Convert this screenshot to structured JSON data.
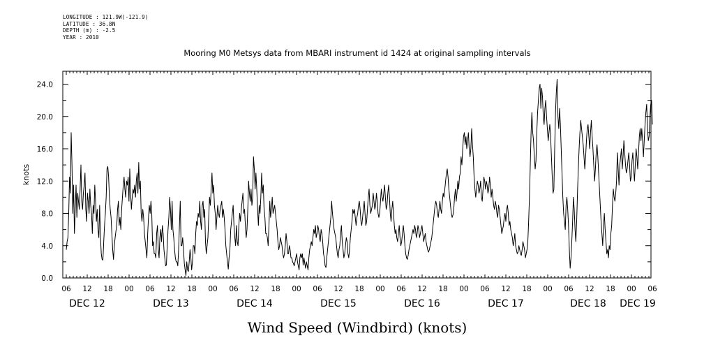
{
  "meta": {
    "longitude": "LONGITUDE : 121.9W(-121.9)",
    "latitude": "LATITUDE : 36.8N",
    "depth": "DEPTH (m) : -2.5",
    "year": "YEAR : 2010"
  },
  "chart_data": {
    "type": "line",
    "title": "Mooring M0 Metsys data from MBARI instrument id 1424 at original sampling intervals",
    "ylabel": "knots",
    "xlabel": "Wind Speed (Windbird) (knots)",
    "ylim": [
      0,
      25.6
    ],
    "xlim_hours": [
      0,
      168
    ],
    "grid": false,
    "y_ticks": [
      "0.0",
      "4.0",
      "8.0",
      "12.0",
      "16.0",
      "20.0",
      "24.0"
    ],
    "x_hour_labels": [
      "06",
      "12",
      "18",
      "00",
      "06",
      "12",
      "18",
      "00",
      "06",
      "12",
      "18",
      "00",
      "06",
      "12",
      "18",
      "00",
      "06",
      "12",
      "18",
      "00",
      "06",
      "12",
      "18",
      "00",
      "06",
      "12",
      "18",
      "00",
      "06"
    ],
    "day_labels": [
      "DEC 12",
      "DEC 13",
      "DEC 14",
      "DEC 15",
      "DEC 16",
      "DEC 17",
      "DEC 18",
      "DEC 19"
    ],
    "series": [
      {
        "values": [
          3.5,
          4.5,
          5.0,
          8.0,
          12.5,
          10.5,
          18.0,
          14.0,
          8.0,
          11.5,
          5.5,
          8.5,
          11.5,
          7.5,
          10.5,
          9.5,
          8.5,
          11.0,
          14.0,
          9.5,
          8.5,
          10.5,
          11.5,
          13.0,
          8.5,
          7.0,
          10.5,
          9.5,
          8.0,
          11.0,
          9.0,
          8.0,
          5.5,
          9.0,
          8.0,
          11.5,
          9.5,
          7.0,
          8.5,
          6.0,
          5.0,
          9.0,
          5.0,
          3.0,
          2.3,
          2.2,
          4.5,
          6.5,
          8.0,
          10.0,
          13.5,
          13.8,
          12.5,
          10.0,
          8.5,
          7.5,
          5.5,
          3.5,
          2.3,
          4.0,
          5.0,
          5.8,
          6.5,
          8.5,
          9.5,
          6.5,
          7.5,
          6.0,
          8.5,
          10.0,
          11.5,
          12.5,
          11.0,
          10.0,
          12.0,
          11.5,
          12.5,
          9.5,
          13.5,
          10.5,
          8.5,
          10.0,
          11.0,
          10.5,
          11.5,
          10.0,
          12.0,
          13.0,
          10.5,
          14.3,
          11.0,
          12.0,
          8.0,
          7.0,
          8.5,
          7.5,
          5.5,
          4.5,
          3.5,
          2.5,
          5.5,
          7.5,
          9.0,
          8.0,
          9.5,
          8.0,
          4.0,
          4.5,
          3.0,
          3.0,
          2.5,
          5.5,
          6.5,
          3.5,
          2.5,
          5.0,
          6.0,
          4.5,
          6.5,
          5.5,
          3.5,
          2.5,
          1.5,
          1.6,
          4.0,
          6.0,
          7.5,
          10.0,
          8.5,
          6.0,
          9.5,
          6.0,
          5.0,
          3.5,
          2.5,
          2.0,
          2.0,
          1.5,
          3.5,
          6.5,
          9.5,
          4.0,
          4.0,
          5.0,
          3.5,
          1.8,
          1.0,
          0.3,
          2.0,
          1.0,
          0.8,
          2.0,
          3.5,
          2.5,
          1.0,
          2.0,
          4.0,
          4.0,
          3.0,
          5.5,
          7.0,
          6.5,
          8.0,
          7.5,
          9.5,
          7.0,
          6.0,
          9.0,
          9.5,
          7.5,
          8.5,
          4.5,
          3.0,
          4.0,
          5.0,
          7.5,
          10.0,
          9.0,
          11.0,
          13.0,
          10.5,
          11.5,
          9.0,
          8.0,
          6.0,
          7.5,
          9.0,
          8.0,
          7.5,
          8.5,
          9.0,
          9.5,
          7.5,
          8.5,
          7.5,
          6.0,
          4.0,
          3.0,
          2.0,
          1.1,
          2.5,
          3.5,
          6.0,
          7.0,
          8.0,
          9.0,
          6.5,
          5.0,
          4.0,
          6.5,
          4.5,
          4.0,
          6.5,
          8.0,
          7.0,
          8.5,
          9.5,
          10.5,
          8.0,
          8.5,
          6.5,
          5.0,
          6.0,
          8.5,
          12.0,
          10.5,
          9.5,
          11.0,
          9.0,
          10.0,
          15.0,
          13.5,
          11.0,
          13.0,
          11.0,
          8.5,
          6.5,
          9.0,
          8.0,
          10.0,
          13.0,
          10.5,
          11.5,
          8.5,
          7.5,
          5.5,
          5.5,
          5.0,
          4.0,
          6.5,
          9.5,
          7.5,
          8.5,
          10.0,
          8.0,
          8.5,
          9.0,
          8.0,
          7.0,
          6.0,
          4.5,
          3.5,
          4.0,
          5.0,
          4.5,
          4.0,
          3.0,
          2.5,
          3.0,
          4.0,
          5.5,
          4.5,
          3.0,
          3.0,
          4.0,
          3.5,
          2.5,
          2.5,
          2.0,
          1.8,
          1.5,
          2.0,
          2.5,
          3.0,
          2.0,
          1.5,
          1.0,
          2.5,
          3.0,
          2.5,
          3.0,
          1.6,
          2.5,
          1.8,
          1.2,
          2.0,
          1.5,
          1.0,
          2.5,
          3.5,
          4.0,
          4.5,
          4.0,
          5.0,
          6.0,
          5.5,
          6.5,
          5.0,
          5.5,
          6.5,
          6.0,
          5.0,
          4.5,
          6.0,
          5.5,
          4.5,
          3.0,
          2.5,
          1.5,
          1.3,
          2.5,
          3.5,
          4.5,
          5.5,
          6.5,
          7.5,
          9.5,
          8.0,
          7.0,
          6.0,
          5.5,
          5.0,
          4.0,
          3.0,
          2.5,
          3.5,
          4.0,
          5.5,
          6.5,
          4.5,
          3.5,
          2.5,
          3.0,
          4.0,
          5.0,
          4.5,
          3.0,
          2.5,
          3.5,
          5.0,
          6.0,
          7.0,
          8.5,
          8.0,
          8.5,
          7.5,
          6.5,
          7.5,
          8.0,
          9.0,
          9.5,
          8.5,
          7.0,
          6.5,
          7.5,
          8.5,
          9.5,
          8.0,
          6.5,
          7.0,
          8.5,
          10.0,
          11.0,
          9.0,
          8.0,
          8.5,
          9.0,
          10.5,
          9.5,
          8.5,
          9.0,
          10.5,
          9.5,
          8.0,
          7.5,
          8.0,
          9.5,
          11.0,
          10.0,
          9.5,
          10.5,
          11.5,
          10.0,
          8.5,
          9.0,
          10.5,
          11.5,
          10.0,
          8.0,
          7.0,
          8.5,
          9.5,
          8.0,
          6.5,
          5.5,
          6.0,
          5.0,
          4.5,
          5.5,
          6.5,
          5.0,
          4.0,
          4.5,
          5.5,
          6.5,
          5.5,
          4.0,
          3.0,
          2.5,
          2.3,
          2.8,
          3.5,
          4.0,
          4.5,
          5.0,
          5.5,
          6.0,
          5.5,
          6.5,
          6.0,
          5.0,
          5.5,
          6.5,
          6.0,
          5.0,
          5.5,
          6.0,
          6.5,
          5.5,
          4.5,
          5.0,
          5.5,
          4.5,
          4.0,
          3.5,
          3.2,
          3.5,
          4.0,
          4.5,
          5.0,
          6.0,
          7.0,
          8.0,
          9.0,
          9.5,
          9.0,
          8.0,
          7.5,
          8.5,
          9.5,
          8.5,
          8.0,
          9.5,
          10.5,
          10.0,
          11.0,
          12.0,
          13.0,
          13.5,
          12.5,
          11.0,
          10.0,
          9.0,
          8.0,
          7.5,
          7.8,
          8.5,
          10.0,
          11.0,
          9.5,
          10.5,
          12.0,
          11.0,
          12.5,
          13.0,
          15.0,
          14.0,
          16.0,
          17.5,
          18.0,
          16.5,
          17.5,
          16.0,
          17.0,
          18.0,
          16.0,
          15.0,
          16.0,
          18.5,
          16.5,
          15.0,
          12.5,
          11.0,
          10.0,
          11.0,
          12.0,
          11.5,
          10.5,
          11.0,
          12.0,
          10.0,
          9.5,
          11.0,
          12.5,
          12.0,
          11.0,
          12.0,
          11.5,
          10.5,
          11.0,
          12.5,
          11.5,
          10.0,
          11.0,
          10.0,
          9.0,
          8.5,
          9.5,
          9.0,
          8.0,
          7.5,
          9.0,
          8.5,
          7.5,
          6.5,
          5.5,
          6.0,
          6.5,
          7.5,
          8.0,
          7.0,
          8.5,
          9.0,
          8.0,
          6.5,
          7.0,
          6.0,
          5.5,
          5.0,
          4.0,
          4.5,
          5.5,
          4.0,
          3.5,
          3.0,
          3.2,
          4.0,
          3.5,
          3.0,
          2.8,
          3.5,
          4.5,
          4.0,
          3.5,
          2.5,
          3.0,
          3.5,
          4.5,
          7.0,
          10.0,
          14.0,
          18.0,
          20.5,
          18.0,
          17.0,
          15.0,
          13.5,
          14.5,
          18.0,
          20.5,
          22.0,
          23.5,
          24.0,
          21.0,
          23.5,
          22.5,
          20.0,
          19.0,
          21.0,
          22.0,
          20.0,
          18.5,
          17.0,
          18.0,
          19.0,
          17.5,
          15.0,
          12.5,
          10.5,
          11.0,
          16.0,
          20.5,
          23.0,
          24.6,
          20.0,
          18.5,
          21.0,
          19.0,
          16.0,
          13.0,
          10.0,
          8.0,
          7.0,
          6.0,
          9.0,
          10.0,
          8.5,
          6.5,
          3.5,
          1.2,
          2.5,
          4.5,
          7.0,
          10.0,
          8.5,
          6.0,
          4.5,
          7.0,
          10.5,
          13.5,
          16.0,
          18.0,
          19.5,
          18.5,
          17.5,
          16.5,
          15.0,
          13.5,
          15.0,
          17.0,
          18.5,
          19.0,
          17.5,
          16.0,
          18.0,
          19.5,
          17.5,
          16.0,
          14.0,
          12.0,
          13.5,
          15.5,
          16.5,
          15.0,
          13.0,
          11.0,
          9.0,
          7.0,
          5.5,
          4.0,
          6.5,
          8.0,
          6.0,
          4.5,
          3.0,
          3.5,
          2.5,
          4.0,
          3.5,
          5.5,
          6.5,
          9.0,
          11.0,
          10.0,
          9.5,
          10.5,
          12.0,
          15.5,
          13.5,
          11.5,
          14.0,
          15.0,
          16.0,
          13.5,
          15.0,
          17.0,
          15.5,
          14.0,
          13.0,
          13.5,
          14.5,
          15.5,
          14.0,
          12.0,
          12.5,
          14.5,
          15.5,
          13.5,
          12.0,
          14.0,
          16.0,
          15.0,
          13.5,
          15.5,
          17.5,
          18.5,
          17.0,
          18.5,
          17.0,
          15.0,
          17.0,
          19.0,
          20.5,
          21.5,
          18.5,
          17.0,
          17.5,
          20.0,
          21.5,
          22.0,
          19.0
        ]
      }
    ]
  }
}
